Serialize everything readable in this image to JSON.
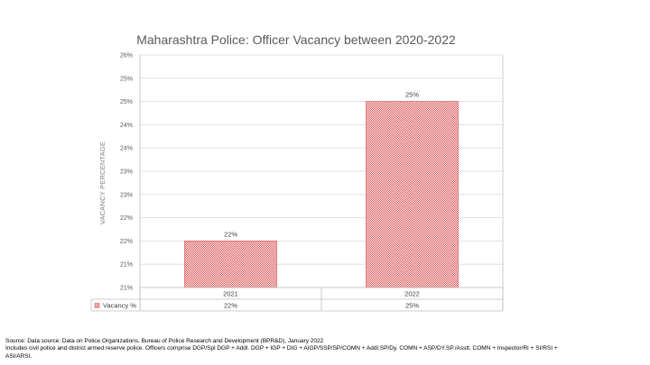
{
  "chart_data": {
    "type": "bar",
    "title": "Maharashtra Police: Officer Vacancy between 2020-2022",
    "ylabel": "VACANCY PERCENTAGE",
    "xlabel": "",
    "categories": [
      "2021",
      "2022"
    ],
    "series": [
      {
        "name": "Vacancy %",
        "values": [
          22,
          25
        ],
        "data_labels": [
          "22%",
          "25%"
        ]
      }
    ],
    "y_ticks": [
      "26%",
      "25%",
      "25%",
      "24%",
      "24%",
      "23%",
      "23%",
      "22%",
      "22%",
      "21%",
      "21%"
    ],
    "ylim": [
      21,
      26
    ],
    "bar_color": "#d94a4a",
    "bar_pattern": "dotted",
    "legend": "data-table"
  },
  "footer": {
    "line1": "Source: Data source: Data on Police Organizations, Bureau of Police Research and Development (BPR&D), January 2022",
    "line2": "Includes civil police and district armed reserve police. Officers comprise DGP/Spl DGP + Addl. DGP + IGP + DIG + AIGP/SSP/SP/COMN + Addl.SP/Dy. COMN + ASP/DY.SP./Asstt. COMN + Inspector/RI + SI/RSI +",
    "line3": "ASI/ARSI."
  }
}
